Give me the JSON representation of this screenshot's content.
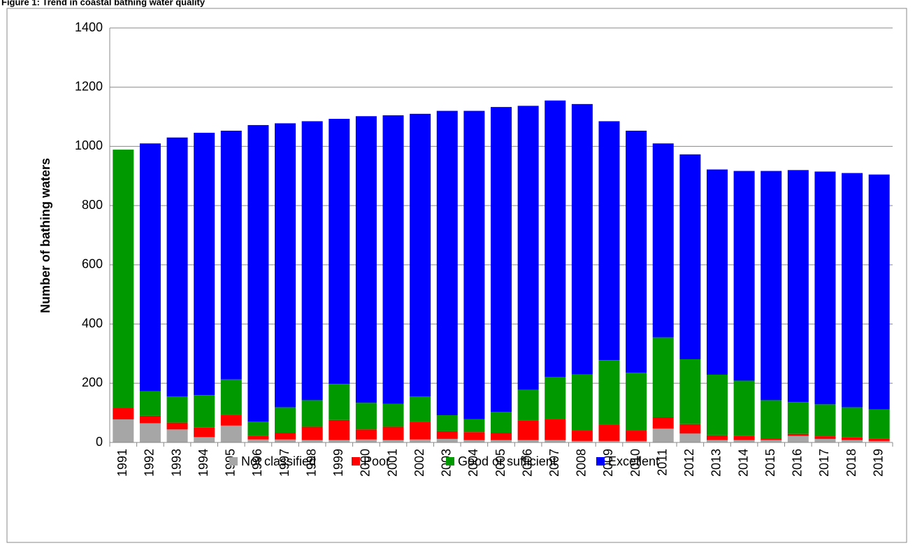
{
  "chart_data": {
    "type": "stacked_bar",
    "title": "Figure 1: Trend in coastal bathing water quality",
    "y_label": "Number of bathing waters",
    "categories": [
      "1991",
      "1992",
      "1993",
      "1994",
      "1995",
      "1996",
      "1997",
      "1998",
      "1999",
      "2000",
      "2001",
      "2002",
      "2003",
      "2004",
      "2005",
      "2006",
      "2007",
      "2008",
      "2009",
      "2010",
      "2011",
      "2012",
      "2013",
      "2014",
      "2015",
      "2016",
      "2017",
      "2018",
      "2019"
    ],
    "series": [
      {
        "name": "Not classified",
        "color": "#a6a6a6",
        "values": [
          78,
          65,
          44,
          18,
          57,
          10,
          10,
          8,
          8,
          10,
          8,
          10,
          12,
          8,
          8,
          8,
          8,
          5,
          5,
          5,
          47,
          30,
          8,
          8,
          8,
          22,
          12,
          8,
          5
        ]
      },
      {
        "name": "Poor",
        "color": "#ff0000",
        "values": [
          39,
          25,
          23,
          32,
          36,
          13,
          23,
          45,
          68,
          34,
          45,
          60,
          26,
          27,
          25,
          67,
          72,
          35,
          55,
          35,
          38,
          32,
          16,
          14,
          6,
          7,
          9,
          9,
          7
        ]
      },
      {
        "name": "Good or sufficient",
        "color": "#009900",
        "values": [
          872,
          83,
          88,
          110,
          120,
          47,
          86,
          90,
          122,
          90,
          78,
          85,
          54,
          44,
          70,
          103,
          141,
          190,
          218,
          196,
          270,
          219,
          205,
          187,
          129,
          108,
          108,
          102,
          100
        ]
      },
      {
        "name": "Excellent",
        "color": "#0000ff",
        "values": [
          0,
          837,
          875,
          886,
          840,
          1002,
          959,
          942,
          895,
          968,
          974,
          955,
          1028,
          1041,
          1030,
          959,
          934,
          913,
          807,
          817,
          655,
          692,
          693,
          708,
          774,
          783,
          786,
          791,
          793
        ]
      }
    ],
    "ylim": [
      0,
      1400
    ],
    "yticks": [
      0,
      200,
      400,
      600,
      800,
      1000,
      1200,
      1400
    ],
    "grid": true,
    "legend": "bottom"
  }
}
